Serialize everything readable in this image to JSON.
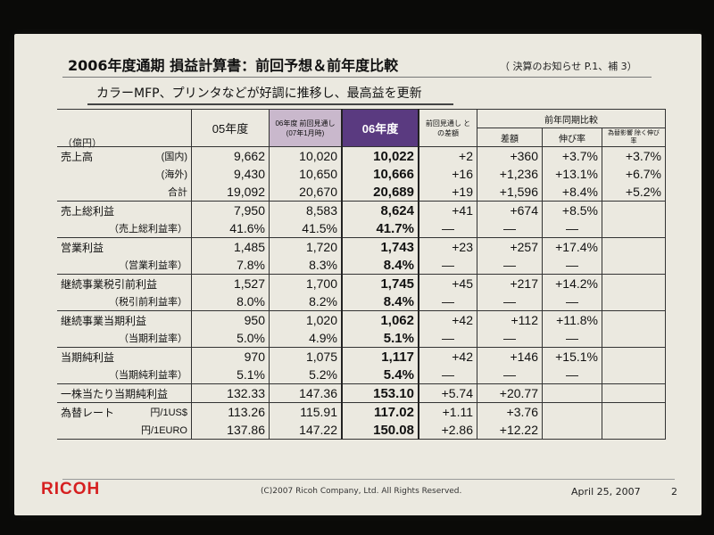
{
  "slide": {
    "title": "2006年度通期 損益計算書：前回予想＆前年度比較",
    "reference": "（ 決算のお知らせ P.1、補 3）",
    "subtitle": "カラーMFP、プリンタなどが好調に推移し、最高益を更新",
    "unit": "（億円）"
  },
  "table": {
    "headers": {
      "fy05": "05年度",
      "forecast": "06年度 前回見通し (07年1月時)",
      "fy06": "06年度",
      "vs_forecast": "前回見通し との差額",
      "yoy": "前年同期比較",
      "diff": "差額",
      "growth": "伸び率",
      "ex_fx": "為替影響 除く伸び率"
    },
    "rows": [
      {
        "label": "売上高",
        "sub": "(国内)",
        "fy05": "9,662",
        "forecast": "10,020",
        "fy06": "10,022",
        "vs_forecast": "+2",
        "diff": "+360",
        "growth": "+3.7%",
        "ex_fx": "+3.7%"
      },
      {
        "label": "",
        "sub": "(海外)",
        "fy05": "9,430",
        "forecast": "10,650",
        "fy06": "10,666",
        "vs_forecast": "+16",
        "diff": "+1,236",
        "growth": "+13.1%",
        "ex_fx": "+6.7%"
      },
      {
        "label": "",
        "sub": "合計",
        "fy05": "19,092",
        "forecast": "20,670",
        "fy06": "20,689",
        "vs_forecast": "+19",
        "diff": "+1,596",
        "growth": "+8.4%",
        "ex_fx": "+5.2%"
      },
      {
        "label": "売上総利益",
        "sub": "",
        "fy05": "7,950",
        "forecast": "8,583",
        "fy06": "8,624",
        "vs_forecast": "+41",
        "diff": "+674",
        "growth": "+8.5%",
        "ex_fx": ""
      },
      {
        "label": "",
        "sub": "（売上総利益率）",
        "fy05": "41.6%",
        "forecast": "41.5%",
        "fy06": "41.7%",
        "vs_forecast": "—",
        "diff": "—",
        "growth": "—",
        "ex_fx": ""
      },
      {
        "label": "営業利益",
        "sub": "",
        "fy05": "1,485",
        "forecast": "1,720",
        "fy06": "1,743",
        "vs_forecast": "+23",
        "diff": "+257",
        "growth": "+17.4%",
        "ex_fx": ""
      },
      {
        "label": "",
        "sub": "（営業利益率）",
        "fy05": "7.8%",
        "forecast": "8.3%",
        "fy06": "8.4%",
        "vs_forecast": "—",
        "diff": "—",
        "growth": "—",
        "ex_fx": ""
      },
      {
        "label": "継続事業税引前利益",
        "sub": "",
        "fy05": "1,527",
        "forecast": "1,700",
        "fy06": "1,745",
        "vs_forecast": "+45",
        "diff": "+217",
        "growth": "+14.2%",
        "ex_fx": ""
      },
      {
        "label": "",
        "sub": "（税引前利益率）",
        "fy05": "8.0%",
        "forecast": "8.2%",
        "fy06": "8.4%",
        "vs_forecast": "—",
        "diff": "—",
        "growth": "—",
        "ex_fx": ""
      },
      {
        "label": "継続事業当期利益",
        "sub": "",
        "fy05": "950",
        "forecast": "1,020",
        "fy06": "1,062",
        "vs_forecast": "+42",
        "diff": "+112",
        "growth": "+11.8%",
        "ex_fx": ""
      },
      {
        "label": "",
        "sub": "（当期利益率）",
        "fy05": "5.0%",
        "forecast": "4.9%",
        "fy06": "5.1%",
        "vs_forecast": "—",
        "diff": "—",
        "growth": "—",
        "ex_fx": ""
      },
      {
        "label": "当期純利益",
        "sub": "",
        "fy05": "970",
        "forecast": "1,075",
        "fy06": "1,117",
        "vs_forecast": "+42",
        "diff": "+146",
        "growth": "+15.1%",
        "ex_fx": ""
      },
      {
        "label": "",
        "sub": "（当期純利益率）",
        "fy05": "5.1%",
        "forecast": "5.2%",
        "fy06": "5.4%",
        "vs_forecast": "—",
        "diff": "—",
        "growth": "—",
        "ex_fx": ""
      },
      {
        "label": "一株当たり当期純利益",
        "sub": "",
        "fy05": "132.33",
        "forecast": "147.36",
        "fy06": "153.10",
        "vs_forecast": "+5.74",
        "diff": "+20.77",
        "growth": "",
        "ex_fx": ""
      },
      {
        "label": "為替レート",
        "sub": "円/1US$",
        "fy05": "113.26",
        "forecast": "115.91",
        "fy06": "117.02",
        "vs_forecast": "+1.11",
        "diff": "+3.76",
        "growth": "",
        "ex_fx": ""
      },
      {
        "label": "",
        "sub": "円/1EURO",
        "fy05": "137.86",
        "forecast": "147.22",
        "fy06": "150.08",
        "vs_forecast": "+2.86",
        "diff": "+12.22",
        "growth": "",
        "ex_fx": ""
      }
    ]
  },
  "footer": {
    "logo": "RICOH",
    "copyright": "(C)2007 Ricoh Company, Ltd. All Rights Reserved.",
    "date": "April 25, 2007",
    "page": "2"
  },
  "colors": {
    "fy06_header": "#5a3a80",
    "forecast_header": "#c9b8cc",
    "logo": "#d62020"
  }
}
